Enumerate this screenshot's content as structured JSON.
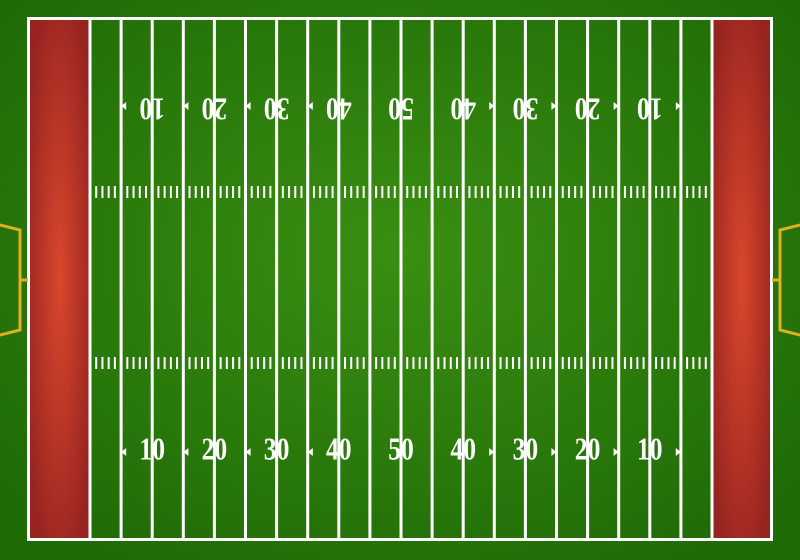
{
  "field": {
    "top_numbers": [
      "10",
      "20",
      "30",
      "40",
      "50",
      "40",
      "30",
      "20",
      "10"
    ],
    "bottom_numbers": [
      "10",
      "20",
      "30",
      "40",
      "50",
      "40",
      "30",
      "20",
      "10"
    ]
  }
}
